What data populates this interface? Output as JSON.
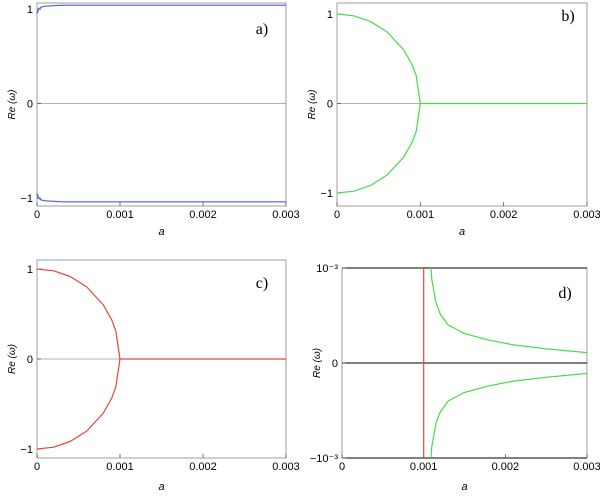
{
  "chart_data": [
    {
      "panel": "a)",
      "type": "line",
      "xlabel": "a",
      "ylabel": "Re (ω)",
      "xlim": [
        0,
        0.003
      ],
      "ylim": [
        -1.1,
        1.1
      ],
      "xticks": [
        0,
        0.001,
        0.002,
        0.003
      ],
      "xtick_labels": [
        "0",
        "0.001",
        "0.002",
        "0.003"
      ],
      "yticks": [
        1,
        0,
        -1
      ],
      "ytick_labels": [
        "1",
        "0",
        "−1"
      ],
      "grid": false,
      "series": [
        {
          "color": "#4a5de0",
          "x": [
            0,
            2e-05,
            5e-05,
            0.0001,
            0.0002,
            0.0003,
            0.001,
            0.002,
            0.003
          ],
          "y": [
            0.95,
            1.0,
            1.02,
            1.03,
            1.035,
            1.04,
            1.04,
            1.04,
            1.04
          ]
        },
        {
          "color": "#4a5de0",
          "x": [
            0,
            2e-05,
            5e-05,
            0.0001,
            0.0002,
            0.0003,
            0.001,
            0.002,
            0.003
          ],
          "y": [
            -0.95,
            -1.0,
            -1.02,
            -1.03,
            -1.035,
            -1.04,
            -1.04,
            -1.04,
            -1.04
          ]
        }
      ]
    },
    {
      "panel": "b)",
      "type": "line",
      "xlabel": "a",
      "ylabel": "Re (ω)",
      "xlim": [
        0,
        0.003
      ],
      "ylim": [
        -1.1,
        1.1
      ],
      "xticks": [
        0,
        0.001,
        0.002,
        0.003
      ],
      "xtick_labels": [
        "0",
        "0.001",
        "0.002",
        "0.003"
      ],
      "yticks": [
        1,
        0,
        -1
      ],
      "ytick_labels": [
        "1",
        "0",
        "−1"
      ],
      "grid": false,
      "series": [
        {
          "color": "#44dd44",
          "x": [
            0,
            0.0002,
            0.0004,
            0.0006,
            0.0008,
            0.0009,
            0.00095,
            0.001,
            0.002,
            0.003
          ],
          "y": [
            1.0,
            0.98,
            0.917,
            0.8,
            0.6,
            0.436,
            0.312,
            0,
            0,
            0
          ]
        },
        {
          "color": "#44dd44",
          "x": [
            0,
            0.0002,
            0.0004,
            0.0006,
            0.0008,
            0.0009,
            0.00095,
            0.001
          ],
          "y": [
            -1.0,
            -0.98,
            -0.917,
            -0.8,
            -0.6,
            -0.436,
            -0.312,
            0
          ]
        }
      ]
    },
    {
      "panel": "c)",
      "type": "line",
      "xlabel": "a",
      "ylabel": "Re (ω)",
      "xlim": [
        0,
        0.003
      ],
      "ylim": [
        -1.1,
        1.1
      ],
      "xticks": [
        0,
        0.001,
        0.002,
        0.003
      ],
      "xtick_labels": [
        "0",
        "0.001",
        "0.002",
        "0.003"
      ],
      "yticks": [
        1,
        0,
        -1
      ],
      "ytick_labels": [
        "1",
        "0",
        "−1"
      ],
      "grid": false,
      "series": [
        {
          "color": "#e8453c",
          "x": [
            0,
            0.0002,
            0.0004,
            0.0006,
            0.0008,
            0.0009,
            0.00095,
            0.001,
            0.002,
            0.003
          ],
          "y": [
            1.0,
            0.98,
            0.917,
            0.8,
            0.6,
            0.436,
            0.312,
            0,
            0,
            0
          ]
        },
        {
          "color": "#e8453c",
          "x": [
            0,
            0.0002,
            0.0004,
            0.0006,
            0.0008,
            0.0009,
            0.00095,
            0.001
          ],
          "y": [
            -1.0,
            -0.98,
            -0.917,
            -0.8,
            -0.6,
            -0.436,
            -0.312,
            0
          ]
        }
      ]
    },
    {
      "panel": "d)",
      "type": "line",
      "xlabel": "a",
      "ylabel": "Re (ω)",
      "xlim": [
        0,
        0.003
      ],
      "ylim": [
        -0.001,
        0.001
      ],
      "xticks": [
        0,
        0.001,
        0.002,
        0.003
      ],
      "xtick_labels": [
        "0",
        "0.001",
        "0.002",
        "0.003"
      ],
      "yticks": [
        0.001,
        0,
        -0.001
      ],
      "ytick_labels": [
        "10⁻³",
        "0",
        "−10⁻³"
      ],
      "grid": false,
      "series": [
        {
          "color": "#e8453c",
          "x": [
            0.001,
            0.001
          ],
          "y": [
            -0.001,
            0.001
          ]
        },
        {
          "color": "#44dd44",
          "x": [
            0.00109,
            0.0011,
            0.00115,
            0.0012,
            0.0013,
            0.0015,
            0.0018,
            0.0021,
            0.0025,
            0.003
          ],
          "y": [
            0.001,
            0.00088,
            0.00064,
            0.00052,
            0.0004,
            0.00031,
            0.00024,
            0.00019,
            0.00015,
            0.00011
          ]
        },
        {
          "color": "#44dd44",
          "x": [
            0.00109,
            0.0011,
            0.00115,
            0.0012,
            0.0013,
            0.0015,
            0.0018,
            0.0021,
            0.0025,
            0.003
          ],
          "y": [
            -0.001,
            -0.00088,
            -0.00064,
            -0.00052,
            -0.0004,
            -0.00031,
            -0.00024,
            -0.00019,
            -0.00015,
            -0.00011
          ]
        }
      ]
    }
  ]
}
